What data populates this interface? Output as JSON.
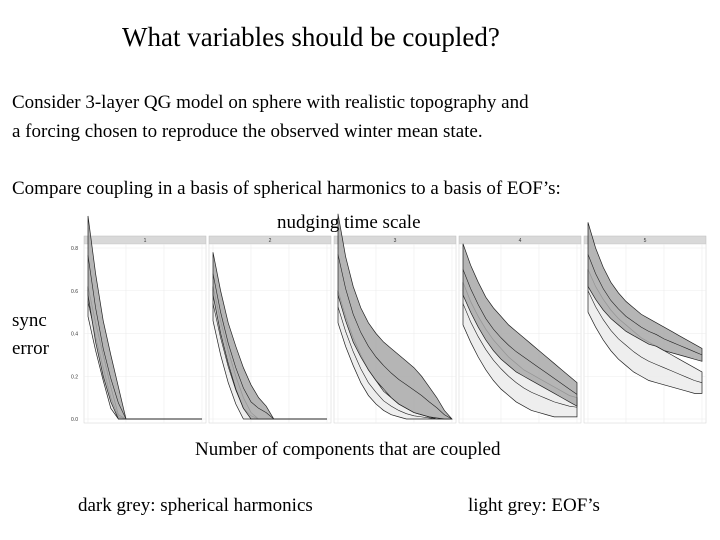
{
  "slide": {
    "title": "What variables should be coupled?",
    "intro_line_1": "Consider 3-layer QG model on sphere with realistic topography and",
    "intro_line_2": "a forcing chosen to reproduce the observed winter mean state.",
    "compare_line": "Compare coupling in a basis of spherical harmonics to a basis of EOF’s:",
    "nudging_label": "nudging time scale",
    "ylabel_line_1": "sync",
    "ylabel_line_2": "error",
    "xlabel": "Number of components that are coupled",
    "legend_dark": "dark grey: spherical harmonics",
    "legend_light": "light grey: EOF’s"
  },
  "chart_data": {
    "type": "area",
    "facet_label": "nudging time scale",
    "panels": [
      "1",
      "2",
      "3",
      "4",
      "5"
    ],
    "x": [
      0,
      1,
      2,
      3,
      4,
      5,
      6,
      7,
      8,
      9,
      10,
      11,
      12,
      13,
      14,
      15
    ],
    "xlim": [
      0,
      15
    ],
    "ylim": [
      0,
      0.8
    ],
    "yticks": [
      0.0,
      0.2,
      0.4,
      0.6,
      0.8
    ],
    "ylabel": "sync error",
    "xlabel": "Number of components that are coupled",
    "band_colors": {
      "spherical_harmonics": "#a8a8a8",
      "eofs": "#ececec"
    },
    "series": [
      {
        "name": "spherical harmonics",
        "panels": [
          {
            "lower": [
              0.58,
              0.36,
              0.2,
              0.08,
              0,
              0,
              0,
              0,
              0,
              0,
              0,
              0,
              0,
              0,
              0,
              0
            ],
            "upper": [
              0.95,
              0.68,
              0.46,
              0.3,
              0.15,
              0,
              0,
              0,
              0,
              0,
              0,
              0,
              0,
              0,
              0,
              0
            ]
          },
          {
            "lower": [
              0.58,
              0.4,
              0.26,
              0.14,
              0.05,
              0,
              0,
              0,
              0,
              0,
              0,
              0,
              0,
              0,
              0,
              0
            ],
            "upper": [
              0.78,
              0.6,
              0.45,
              0.34,
              0.24,
              0.16,
              0.1,
              0.06,
              0,
              0,
              0,
              0,
              0,
              0,
              0,
              0
            ]
          },
          {
            "lower": [
              0.58,
              0.46,
              0.36,
              0.29,
              0.23,
              0.18,
              0.14,
              0.1,
              0.07,
              0.05,
              0.03,
              0.02,
              0.01,
              0.005,
              0,
              0
            ],
            "upper": [
              0.96,
              0.76,
              0.62,
              0.52,
              0.45,
              0.4,
              0.36,
              0.33,
              0.3,
              0.27,
              0.24,
              0.2,
              0.15,
              0.1,
              0.04,
              0
            ]
          },
          {
            "lower": [
              0.58,
              0.5,
              0.43,
              0.37,
              0.32,
              0.28,
              0.25,
              0.22,
              0.2,
              0.18,
              0.16,
              0.14,
              0.12,
              0.1,
              0.08,
              0.06
            ],
            "upper": [
              0.82,
              0.72,
              0.64,
              0.57,
              0.52,
              0.48,
              0.44,
              0.41,
              0.38,
              0.35,
              0.32,
              0.29,
              0.26,
              0.23,
              0.2,
              0.17
            ]
          },
          {
            "lower": [
              0.62,
              0.56,
              0.51,
              0.47,
              0.44,
              0.41,
              0.39,
              0.37,
              0.35,
              0.34,
              0.32,
              0.31,
              0.3,
              0.29,
              0.28,
              0.27
            ],
            "upper": [
              0.92,
              0.8,
              0.71,
              0.64,
              0.59,
              0.55,
              0.52,
              0.49,
              0.47,
              0.45,
              0.43,
              0.41,
              0.39,
              0.37,
              0.35,
              0.33
            ]
          }
        ]
      },
      {
        "name": "EOF’s",
        "panels": [
          {
            "lower": [
              0.48,
              0.32,
              0.18,
              0.05,
              0,
              0,
              0,
              0,
              0,
              0,
              0,
              0,
              0,
              0,
              0,
              0
            ],
            "upper": [
              0.62,
              0.45,
              0.3,
              0.15,
              0.02,
              0,
              0,
              0,
              0,
              0,
              0,
              0,
              0,
              0,
              0,
              0
            ]
          },
          {
            "lower": [
              0.46,
              0.3,
              0.17,
              0.07,
              0,
              0,
              0,
              0,
              0,
              0,
              0,
              0,
              0,
              0,
              0,
              0
            ],
            "upper": [
              0.62,
              0.46,
              0.32,
              0.2,
              0.1,
              0.03,
              0,
              0,
              0,
              0,
              0,
              0,
              0,
              0,
              0,
              0
            ]
          },
          {
            "lower": [
              0.45,
              0.34,
              0.25,
              0.17,
              0.11,
              0.07,
              0.04,
              0.02,
              0.01,
              0,
              0,
              0,
              0,
              0,
              0,
              0
            ],
            "upper": [
              0.6,
              0.48,
              0.38,
              0.3,
              0.23,
              0.18,
              0.13,
              0.1,
              0.07,
              0.05,
              0.03,
              0.02,
              0.01,
              0,
              0,
              0
            ]
          },
          {
            "lower": [
              0.44,
              0.36,
              0.29,
              0.23,
              0.18,
              0.14,
              0.11,
              0.08,
              0.06,
              0.04,
              0.03,
              0.02,
              0.01,
              0.01,
              0.01,
              0.01
            ],
            "upper": [
              0.64,
              0.55,
              0.48,
              0.42,
              0.37,
              0.33,
              0.29,
              0.26,
              0.23,
              0.21,
              0.19,
              0.17,
              0.15,
              0.13,
              0.11,
              0.1
            ]
          },
          {
            "lower": [
              0.5,
              0.43,
              0.37,
              0.32,
              0.28,
              0.25,
              0.22,
              0.2,
              0.18,
              0.17,
              0.16,
              0.15,
              0.14,
              0.13,
              0.12,
              0.12
            ],
            "upper": [
              0.7,
              0.62,
              0.56,
              0.51,
              0.47,
              0.44,
              0.41,
              0.38,
              0.36,
              0.34,
              0.32,
              0.3,
              0.28,
              0.26,
              0.24,
              0.22
            ]
          }
        ]
      }
    ]
  }
}
